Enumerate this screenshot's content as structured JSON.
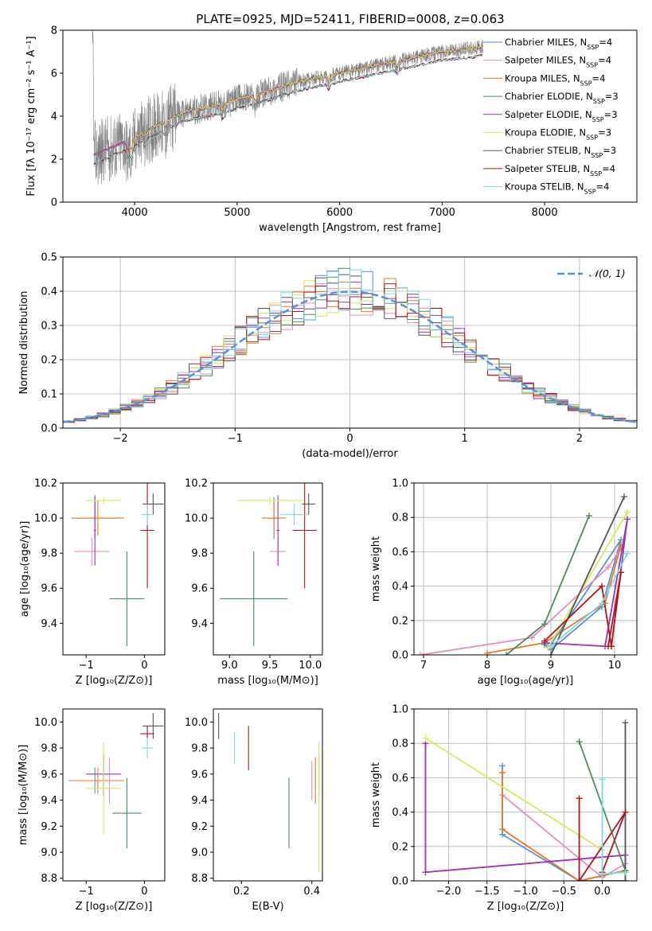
{
  "figure_title": "PLATE=0925, MJD=52411, FIBERID=0008, z=0.063",
  "colors": {
    "Chabrier MILES": "#5b8fd6",
    "Salpeter MILES": "#e58ec0",
    "Kroupa MILES": "#e07b2a",
    "Chabrier ELODIE": "#4f8a5a",
    "Salpeter ELODIE": "#9b35b0",
    "Kroupa ELODIE": "#d7e85a",
    "Chabrier STELIB": "#555555",
    "Salpeter STELIB": "#b3141a",
    "Kroupa STELIB": "#7fd7e0",
    "observed": "#808080",
    "normal": "#5b8fd6"
  },
  "chart_data": [
    {
      "panel": "spectrum",
      "type": "line",
      "xlabel": "wavelength [Angstrom, rest frame]",
      "ylabel": "Flux [fλ 10⁻¹⁷ erg cm⁻² s⁻¹ A⁻¹]",
      "xlim": [
        3300,
        8900
      ],
      "ylim": [
        0,
        8
      ],
      "xticks": [
        4000,
        5000,
        6000,
        7000,
        8000
      ],
      "yticks": [
        0,
        2,
        4,
        6,
        8
      ],
      "legend_position": "right",
      "series": [
        {
          "name": "Chabrier MILES",
          "nssp": "4"
        },
        {
          "name": "Salpeter MILES",
          "nssp": "4"
        },
        {
          "name": "Kroupa MILES",
          "nssp": "4"
        },
        {
          "name": "Chabrier ELODIE",
          "nssp": "3"
        },
        {
          "name": "Salpeter ELODIE",
          "nssp": "3"
        },
        {
          "name": "Kroupa ELODIE",
          "nssp": "3"
        },
        {
          "name": "Chabrier STELIB",
          "nssp": "3"
        },
        {
          "name": "Salpeter STELIB",
          "nssp": "4"
        },
        {
          "name": "Kroupa STELIB",
          "nssp": "4"
        }
      ],
      "model_continuum": {
        "x": [
          3600,
          3700,
          3800,
          3900,
          4000,
          4100,
          4200,
          4300,
          4400,
          4500,
          4700,
          4900,
          5000,
          5200,
          5400,
          5600,
          5800,
          6000,
          6200,
          6400,
          6600,
          6800,
          7000,
          7200,
          7400
        ],
        "y": [
          2.2,
          2.4,
          2.6,
          2.8,
          3.0,
          3.3,
          3.5,
          3.8,
          4.0,
          4.2,
          4.4,
          4.6,
          4.8,
          5.0,
          5.3,
          5.6,
          5.8,
          6.0,
          6.2,
          6.4,
          6.6,
          6.8,
          7.0,
          7.1,
          7.2
        ]
      }
    },
    {
      "panel": "residuals",
      "type": "line",
      "xlabel": "(data-model)/error",
      "ylabel": "Normed distribution",
      "xlim": [
        -2.5,
        2.5
      ],
      "ylim": [
        0,
        0.5
      ],
      "xticks": [
        -2,
        -1,
        0,
        1,
        2
      ],
      "xtick_labels": [
        "−2",
        "−1",
        "0",
        "1",
        "2"
      ],
      "yticks": [
        0.0,
        0.1,
        0.2,
        0.3,
        0.4,
        0.5
      ],
      "ytick_labels": [
        "0.0",
        "0.1",
        "0.2",
        "0.3",
        "0.4",
        "0.5"
      ],
      "grid": true,
      "legend_position": "top-right",
      "normal_label": "𝒩(0, 1)"
    },
    {
      "panel": "age_vs_Z",
      "type": "scatter",
      "xlabel": "Z [log₁₀(Z/Z⊙)]",
      "ylabel": "age  [log₁₀(age/yr)]",
      "xlim": [
        -1.4,
        0.35
      ],
      "ylim": [
        9.22,
        10.2
      ],
      "xticks": [
        -1,
        0
      ],
      "xtick_labels": [
        "−1",
        "0"
      ],
      "yticks": [
        9.4,
        9.6,
        9.8,
        10.0,
        10.2
      ],
      "ytick_labels": [
        "9.4",
        "9.6",
        "9.8",
        "10.0",
        "10.2"
      ],
      "points": [
        {
          "series": "Chabrier MILES",
          "x": -0.85,
          "xerr": 0.4,
          "y": 10.0,
          "yerr": 0.12
        },
        {
          "series": "Salpeter MILES",
          "x": -0.9,
          "xerr": 0.3,
          "y": 9.81,
          "yerr": 0.08
        },
        {
          "series": "Kroupa MILES",
          "x": -0.8,
          "xerr": 0.45,
          "y": 10.0,
          "yerr": 0.1
        },
        {
          "series": "Chabrier ELODIE",
          "x": -0.3,
          "xerr": 0.3,
          "y": 9.54,
          "yerr": 0.27
        },
        {
          "series": "Salpeter ELODIE",
          "x": -0.85,
          "xerr": 0.02,
          "y": 9.93,
          "yerr": 0.2
        },
        {
          "series": "Kroupa ELODIE",
          "x": -0.7,
          "xerr": 0.3,
          "y": 10.1,
          "yerr": 0.02
        },
        {
          "series": "Chabrier STELIB",
          "x": 0.15,
          "xerr": 0.18,
          "y": 10.08,
          "yerr": 0.06
        },
        {
          "series": "Salpeter STELIB",
          "x": 0.05,
          "xerr": 0.12,
          "y": 9.93,
          "yerr": 0.33
        },
        {
          "series": "Kroupa STELIB",
          "x": 0.05,
          "xerr": 0.1,
          "y": 10.02,
          "yerr": 0.06
        }
      ]
    },
    {
      "panel": "age_vs_mass",
      "type": "scatter",
      "xlabel": "mass [log₁₀(M/M⊙)]",
      "xlim": [
        8.8,
        10.15
      ],
      "ylim": [
        9.22,
        10.2
      ],
      "xticks": [
        9.0,
        9.5,
        10.0
      ],
      "xtick_labels": [
        "9.0",
        "9.5",
        "10.0"
      ],
      "yticks": [
        9.4,
        9.6,
        9.8,
        10.0,
        10.2
      ],
      "ytick_labels": [
        "9.4",
        "9.6",
        "9.8",
        "10.0",
        "10.2"
      ],
      "points": [
        {
          "series": "Chabrier MILES",
          "x": 9.55,
          "xerr": 0.08,
          "y": 10.0,
          "yerr": 0.12
        },
        {
          "series": "Salpeter MILES",
          "x": 9.6,
          "xerr": 0.1,
          "y": 9.81,
          "yerr": 0.08
        },
        {
          "series": "Kroupa MILES",
          "x": 9.55,
          "xerr": 0.15,
          "y": 10.0,
          "yerr": 0.1
        },
        {
          "series": "Chabrier ELODIE",
          "x": 9.3,
          "xerr": 0.42,
          "y": 9.54,
          "yerr": 0.27
        },
        {
          "series": "Salpeter ELODIE",
          "x": 9.6,
          "xerr": 0.02,
          "y": 9.93,
          "yerr": 0.2
        },
        {
          "series": "Kroupa ELODIE",
          "x": 9.5,
          "xerr": 0.4,
          "y": 10.1,
          "yerr": 0.02
        },
        {
          "series": "Chabrier STELIB",
          "x": 9.98,
          "xerr": 0.08,
          "y": 10.08,
          "yerr": 0.06
        },
        {
          "series": "Salpeter STELIB",
          "x": 9.93,
          "xerr": 0.15,
          "y": 9.93,
          "yerr": 0.33
        },
        {
          "series": "Kroupa STELIB",
          "x": 9.8,
          "xerr": 0.18,
          "y": 10.02,
          "yerr": 0.06
        }
      ]
    },
    {
      "panel": "weight_vs_age",
      "type": "line",
      "xlabel": "age  [log₁₀(age/yr)]",
      "ylabel": "mass weight",
      "xlim": [
        6.85,
        10.35
      ],
      "ylim": [
        0,
        1
      ],
      "xticks": [
        7,
        8,
        9,
        10
      ],
      "xtick_labels": [
        "7",
        "8",
        "9",
        "10"
      ],
      "yticks": [
        0.0,
        0.2,
        0.4,
        0.6,
        0.8,
        1.0
      ],
      "ytick_labels": [
        "0.0",
        "0.2",
        "0.4",
        "0.6",
        "0.8",
        "1.0"
      ],
      "grid": true,
      "series": [
        {
          "name": "Chabrier MILES",
          "x": [
            8.9,
            9.0,
            9.8,
            10.1,
            9.0
          ],
          "y": [
            0.06,
            0.03,
            0.28,
            0.67,
            0.06
          ]
        },
        {
          "name": "Salpeter MILES",
          "x": [
            6.95,
            8.7,
            9.9,
            10.1
          ],
          "y": [
            0.0,
            0.1,
            0.51,
            0.62
          ]
        },
        {
          "name": "Kroupa MILES",
          "x": [
            8.0,
            8.9,
            9.85,
            10.1
          ],
          "y": [
            0.01,
            0.07,
            0.3,
            0.64
          ]
        },
        {
          "name": "Chabrier ELODIE",
          "x": [
            8.3,
            8.9,
            9.6
          ],
          "y": [
            0.0,
            0.18,
            0.81
          ]
        },
        {
          "name": "Salpeter ELODIE",
          "x": [
            8.9,
            9.85,
            10.2,
            9.95
          ],
          "y": [
            0.07,
            0.05,
            0.79,
            0.05
          ]
        },
        {
          "name": "Kroupa ELODIE",
          "x": [
            8.95,
            10.2
          ],
          "y": [
            0.04,
            0.83
          ]
        },
        {
          "name": "Chabrier STELIB",
          "x": [
            9.0,
            10.15
          ],
          "y": [
            0.0,
            0.92
          ]
        },
        {
          "name": "Salpeter STELIB",
          "x": [
            8.9,
            9.8,
            9.95,
            10.1,
            9.9
          ],
          "y": [
            0.08,
            0.4,
            0.05,
            0.48,
            0.05
          ]
        },
        {
          "name": "Kroupa STELIB",
          "x": [
            9.0,
            9.8,
            10.2
          ],
          "y": [
            0.05,
            0.3,
            0.59
          ]
        }
      ]
    },
    {
      "panel": "mass_vs_Z",
      "type": "scatter",
      "xlabel": "Z [log₁₀(Z/Z⊙)]",
      "ylabel": "mass [log₁₀(M/M⊙)]",
      "xlim": [
        -1.4,
        0.35
      ],
      "ylim": [
        8.78,
        10.1
      ],
      "xticks": [
        -1,
        0
      ],
      "xtick_labels": [
        "−1",
        "0"
      ],
      "yticks": [
        8.8,
        9.0,
        9.2,
        9.4,
        9.6,
        9.8,
        10.0
      ],
      "ytick_labels": [
        "8.8",
        "9.0",
        "9.2",
        "9.4",
        "9.6",
        "9.8",
        "10.0"
      ],
      "points": [
        {
          "series": "Chabrier MILES",
          "x": -0.85,
          "xerr": 0.45,
          "y": 9.55,
          "yerr": 0.1
        },
        {
          "series": "Salpeter MILES",
          "x": -0.6,
          "xerr": 0.2,
          "y": 9.55,
          "yerr": 0.18
        },
        {
          "series": "Kroupa MILES",
          "x": -0.8,
          "xerr": 0.45,
          "y": 9.55,
          "yerr": 0.1
        },
        {
          "series": "Chabrier ELODIE",
          "x": -0.3,
          "xerr": 0.25,
          "y": 9.3,
          "yerr": 0.27
        },
        {
          "series": "Salpeter ELODIE",
          "x": -0.7,
          "xerr": 0.3,
          "y": 9.6,
          "yerr": 0.16
        },
        {
          "series": "Kroupa ELODIE",
          "x": -0.7,
          "xerr": 0.3,
          "y": 9.49,
          "yerr": 0.35
        },
        {
          "series": "Chabrier STELIB",
          "x": 0.15,
          "xerr": 0.18,
          "y": 9.97,
          "yerr": 0.1
        },
        {
          "series": "Salpeter STELIB",
          "x": 0.05,
          "xerr": 0.12,
          "y": 9.91,
          "yerr": 0.06
        },
        {
          "series": "Kroupa STELIB",
          "x": 0.05,
          "xerr": 0.1,
          "y": 9.8,
          "yerr": 0.08
        }
      ]
    },
    {
      "panel": "mass_vs_EBV",
      "type": "scatter",
      "xlabel": "E(B-V)",
      "xlim": [
        0.12,
        0.43
      ],
      "ylim": [
        8.78,
        10.1
      ],
      "xticks": [
        0.2,
        0.4
      ],
      "xtick_labels": [
        "0.2",
        "0.4"
      ],
      "yticks": [
        8.8,
        9.0,
        9.2,
        9.4,
        9.6,
        9.8,
        10.0
      ],
      "ytick_labels": [
        "8.8",
        "9.0",
        "9.2",
        "9.4",
        "9.6",
        "9.8",
        "10.0"
      ],
      "points": [
        {
          "series": "Chabrier STELIB",
          "x": 0.135,
          "xerr": 0.0,
          "y": 9.97,
          "yerr": 0.1
        },
        {
          "series": "Kroupa STELIB",
          "x": 0.18,
          "xerr": 0.0,
          "y": 9.8,
          "yerr": 0.12
        },
        {
          "series": "Salpeter STELIB",
          "x": 0.22,
          "xerr": 0.0,
          "y": 9.8,
          "yerr": 0.17
        },
        {
          "series": "Chabrier ELODIE",
          "x": 0.335,
          "xerr": 0.0,
          "y": 9.3,
          "yerr": 0.27
        },
        {
          "series": "Salpeter MILES",
          "x": 0.4,
          "xerr": 0.0,
          "y": 9.55,
          "yerr": 0.15
        },
        {
          "series": "Kroupa MILES",
          "x": 0.41,
          "xerr": 0.0,
          "y": 9.55,
          "yerr": 0.18
        },
        {
          "series": "Salpeter ELODIE",
          "x": 0.42,
          "xerr": 0.0,
          "y": 9.6,
          "yerr": 0.16
        },
        {
          "series": "Kroupa ELODIE",
          "x": 0.42,
          "xerr": 0.0,
          "y": 9.35,
          "yerr": 0.5
        }
      ]
    },
    {
      "panel": "weight_vs_Z",
      "type": "line",
      "xlabel": "Z [log₁₀(Z/Z⊙)]",
      "ylabel": "mass weight",
      "xlim": [
        -2.45,
        0.45
      ],
      "ylim": [
        0,
        1
      ],
      "xticks": [
        -2.0,
        -1.5,
        -1.0,
        -0.5,
        0.0
      ],
      "xtick_labels": [
        "−2.0",
        "−1.5",
        "−1.0",
        "−0.5",
        "0.0"
      ],
      "yticks": [
        0.0,
        0.2,
        0.4,
        0.6,
        0.8,
        1.0
      ],
      "ytick_labels": [
        "0.0",
        "0.2",
        "0.4",
        "0.6",
        "0.8",
        "1.0"
      ],
      "grid": true,
      "series": [
        {
          "name": "Chabrier MILES",
          "x": [
            -1.3,
            -1.3,
            -0.3,
            0.3
          ],
          "y": [
            0.67,
            0.27,
            0.0,
            0.06
          ]
        },
        {
          "name": "Salpeter MILES",
          "x": [
            -1.3,
            -1.3,
            0.0,
            0.3
          ],
          "y": [
            0.63,
            0.5,
            0.02,
            0.1
          ]
        },
        {
          "name": "Kroupa MILES",
          "x": [
            -1.3,
            -1.3,
            -0.3,
            0.3
          ],
          "y": [
            0.63,
            0.3,
            0.0,
            0.06
          ]
        },
        {
          "name": "Chabrier ELODIE",
          "x": [
            -0.3,
            0.3,
            0.3
          ],
          "y": [
            0.81,
            0.06,
            0.0
          ]
        },
        {
          "name": "Salpeter ELODIE",
          "x": [
            -2.3,
            -2.3,
            0.3,
            0.3
          ],
          "y": [
            0.8,
            0.05,
            0.15,
            0.05
          ]
        },
        {
          "name": "Kroupa ELODIE",
          "x": [
            -2.3,
            0.0,
            0.0
          ],
          "y": [
            0.83,
            0.18,
            0.05
          ]
        },
        {
          "name": "Chabrier STELIB",
          "x": [
            0.3,
            0.3,
            -0.3
          ],
          "y": [
            0.92,
            0.0,
            0.0
          ]
        },
        {
          "name": "Salpeter STELIB",
          "x": [
            -0.3,
            -0.3,
            0.3,
            0.0
          ],
          "y": [
            0.48,
            0.0,
            0.4,
            0.05
          ]
        },
        {
          "name": "Kroupa STELIB",
          "x": [
            0.0,
            0.0,
            0.3
          ],
          "y": [
            0.59,
            0.04,
            0.05
          ]
        }
      ]
    }
  ]
}
